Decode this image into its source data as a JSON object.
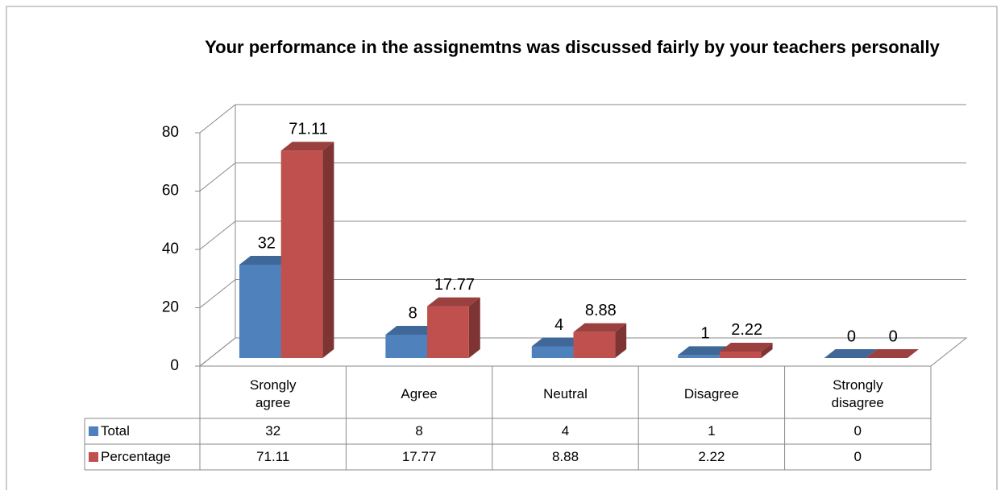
{
  "chart_data": {
    "type": "bar3d",
    "title": "Your performance in the assignemtns was discussed fairly by your teachers personally",
    "categories": [
      "Srongly agree",
      "Agree",
      "Neutral",
      "Disagree",
      "Strongly disagree"
    ],
    "series": [
      {
        "name": "Total",
        "color": "#4f81bd",
        "values": [
          32,
          8,
          4,
          1,
          0
        ]
      },
      {
        "name": "Percentage",
        "color": "#c0504d",
        "values": [
          71.11,
          17.77,
          8.88,
          2.22,
          0
        ]
      }
    ],
    "ylim": [
      0,
      80
    ],
    "yticks": [
      0,
      20,
      40,
      60,
      80
    ],
    "grid": true,
    "data_table": true
  }
}
